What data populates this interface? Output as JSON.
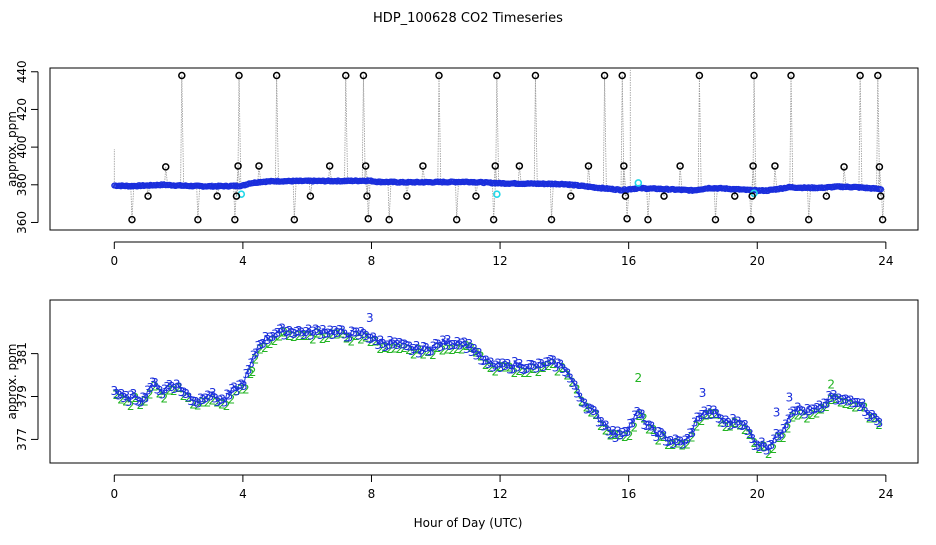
{
  "chart_data": {
    "title": "HDP_100628  CO2 Timeseries",
    "xlabel": "Hour of Day (UTC)",
    "charts": [
      {
        "type": "scatter",
        "name": "upper",
        "ylabel": "approx. ppm",
        "xlim": [
          -2,
          25
        ],
        "ylim": [
          356,
          442
        ],
        "xticks": [
          0,
          4,
          8,
          12,
          16,
          20,
          24
        ],
        "xtick_labels": [
          "0",
          "4",
          "8",
          "12",
          "16",
          "20",
          "24"
        ],
        "yticks": [
          360,
          380,
          400,
          420,
          440
        ],
        "ytick_labels": [
          "360",
          "380",
          "400",
          "420",
          "440"
        ],
        "baseline_profile": [
          [
            0,
            379.6
          ],
          [
            0.5,
            379.3
          ],
          [
            1,
            379.6
          ],
          [
            1.5,
            380
          ],
          [
            2,
            379.6
          ],
          [
            2.5,
            379.3
          ],
          [
            3,
            379.2
          ],
          [
            3.5,
            379.3
          ],
          [
            4,
            379.5
          ],
          [
            4.2,
            380.8
          ],
          [
            4.6,
            381.6
          ],
          [
            5,
            381.9
          ],
          [
            6,
            382.0
          ],
          [
            7,
            382.0
          ],
          [
            7.9,
            382.2
          ],
          [
            8.2,
            381.6
          ],
          [
            9,
            381.3
          ],
          [
            10,
            381.4
          ],
          [
            11,
            381.6
          ],
          [
            12,
            380.8
          ],
          [
            13,
            380.6
          ],
          [
            14,
            380.4
          ],
          [
            15,
            378.5
          ],
          [
            15.8,
            377.2
          ],
          [
            16.3,
            378.2
          ],
          [
            17,
            377.8
          ],
          [
            18,
            377.0
          ],
          [
            18.5,
            378.3
          ],
          [
            19,
            378.0
          ],
          [
            19.9,
            377.0
          ],
          [
            20.3,
            376.9
          ],
          [
            21,
            378.7
          ],
          [
            21.5,
            378.4
          ],
          [
            22,
            378.4
          ],
          [
            22.5,
            379.0
          ],
          [
            23,
            378.8
          ],
          [
            23.8,
            377.8
          ]
        ],
        "blue_series_count": 700,
        "cyan_points": [
          [
            3.95,
            375
          ],
          [
            11.9,
            375
          ],
          [
            19.9,
            375.5
          ],
          [
            16.3,
            381
          ]
        ],
        "outliers": [
          [
            0.55,
            361.5
          ],
          [
            1.05,
            374
          ],
          [
            1.6,
            389.5
          ],
          [
            2.1,
            438
          ],
          [
            2.6,
            361.5
          ],
          [
            3.2,
            374
          ],
          [
            3.75,
            361.5
          ],
          [
            3.8,
            374
          ],
          [
            3.85,
            390
          ],
          [
            3.88,
            438
          ],
          [
            4.5,
            390
          ],
          [
            5.05,
            438
          ],
          [
            5.6,
            361.5
          ],
          [
            6.1,
            374
          ],
          [
            6.7,
            390
          ],
          [
            7.2,
            438
          ],
          [
            7.75,
            438
          ],
          [
            7.82,
            390
          ],
          [
            7.86,
            374
          ],
          [
            7.9,
            362
          ],
          [
            8.55,
            361.5
          ],
          [
            9.1,
            374
          ],
          [
            9.6,
            390
          ],
          [
            10.1,
            438
          ],
          [
            10.65,
            361.5
          ],
          [
            11.25,
            374
          ],
          [
            11.8,
            361.5
          ],
          [
            11.85,
            390
          ],
          [
            11.9,
            438
          ],
          [
            12.6,
            390
          ],
          [
            13.1,
            438
          ],
          [
            13.6,
            361.5
          ],
          [
            14.2,
            374
          ],
          [
            14.75,
            390
          ],
          [
            15.25,
            438
          ],
          [
            15.8,
            438
          ],
          [
            15.85,
            390
          ],
          [
            15.9,
            374
          ],
          [
            15.95,
            362
          ],
          [
            16.6,
            361.5
          ],
          [
            17.1,
            374
          ],
          [
            17.6,
            390
          ],
          [
            18.2,
            438
          ],
          [
            18.7,
            361.5
          ],
          [
            19.3,
            374
          ],
          [
            19.8,
            361.5
          ],
          [
            19.84,
            374
          ],
          [
            19.87,
            390
          ],
          [
            19.9,
            438
          ],
          [
            20.55,
            390
          ],
          [
            21.05,
            438
          ],
          [
            21.6,
            361.5
          ],
          [
            22.15,
            374
          ],
          [
            22.7,
            389.5
          ],
          [
            23.2,
            438
          ],
          [
            23.75,
            438
          ],
          [
            23.8,
            389.5
          ],
          [
            23.84,
            374
          ],
          [
            23.9,
            361.5
          ]
        ],
        "colors": {
          "series": "#1a2edc",
          "cyan": "#22d8e8",
          "outlier": "#000000",
          "spike": "#9a9a9a"
        }
      },
      {
        "type": "scatter",
        "name": "lower",
        "ylabel": "approx. ppm",
        "xlim": [
          -2,
          25
        ],
        "ylim": [
          375.9,
          383.5
        ],
        "xticks": [
          0,
          4,
          8,
          12,
          16,
          20,
          24
        ],
        "xtick_labels": [
          "0",
          "4",
          "8",
          "12",
          "16",
          "20",
          "24"
        ],
        "yticks": [
          377,
          379,
          381
        ],
        "ytick_labels": [
          "377",
          "379",
          "381"
        ],
        "profile": [
          [
            0,
            379.3
          ],
          [
            0.3,
            378.9
          ],
          [
            0.6,
            379.0
          ],
          [
            0.9,
            378.9
          ],
          [
            1.1,
            379.5
          ],
          [
            1.3,
            379.6
          ],
          [
            1.5,
            379.2
          ],
          [
            1.7,
            379.6
          ],
          [
            2.0,
            379.5
          ],
          [
            2.3,
            379.0
          ],
          [
            2.6,
            378.8
          ],
          [
            2.9,
            379.2
          ],
          [
            3.2,
            378.9
          ],
          [
            3.4,
            378.8
          ],
          [
            3.7,
            379.3
          ],
          [
            4.0,
            379.6
          ],
          [
            4.2,
            380.3
          ],
          [
            4.5,
            381.5
          ],
          [
            5.0,
            382.0
          ],
          [
            5.5,
            382.1
          ],
          [
            6.0,
            382.0
          ],
          [
            6.5,
            382.1
          ],
          [
            7.0,
            382.0
          ],
          [
            7.5,
            381.9
          ],
          [
            7.8,
            382.0
          ],
          [
            8.1,
            381.6
          ],
          [
            8.6,
            381.5
          ],
          [
            9.1,
            381.3
          ],
          [
            9.6,
            381.2
          ],
          [
            10.2,
            381.5
          ],
          [
            10.8,
            381.6
          ],
          [
            11.2,
            381.2
          ],
          [
            11.5,
            380.6
          ],
          [
            12.0,
            380.4
          ],
          [
            12.5,
            380.5
          ],
          [
            13.1,
            380.4
          ],
          [
            13.6,
            380.6
          ],
          [
            14.0,
            380.4
          ],
          [
            14.4,
            379.2
          ],
          [
            14.8,
            378.4
          ],
          [
            15.2,
            377.8
          ],
          [
            15.6,
            377.2
          ],
          [
            16.0,
            377.6
          ],
          [
            16.3,
            378.3
          ],
          [
            16.6,
            377.6
          ],
          [
            17.0,
            377.2
          ],
          [
            17.4,
            376.9
          ],
          [
            17.8,
            376.9
          ],
          [
            18.2,
            378.2
          ],
          [
            18.6,
            378.3
          ],
          [
            19.0,
            377.8
          ],
          [
            19.5,
            377.9
          ],
          [
            19.9,
            376.9
          ],
          [
            20.3,
            376.7
          ],
          [
            20.7,
            377.3
          ],
          [
            21.1,
            378.5
          ],
          [
            21.5,
            378.3
          ],
          [
            21.9,
            378.4
          ],
          [
            22.3,
            379.0
          ],
          [
            22.7,
            378.8
          ],
          [
            23.1,
            378.9
          ],
          [
            23.5,
            378.2
          ],
          [
            23.8,
            377.8
          ]
        ],
        "marker_count": 320,
        "blue_marker": "3",
        "green_marker": "2",
        "green_spikes": [
          [
            16.3,
            379.9
          ],
          [
            4.3,
            380.2
          ],
          [
            22.3,
            379.6
          ]
        ],
        "blue_spikes": [
          [
            7.95,
            382.7
          ],
          [
            18.3,
            379.2
          ],
          [
            20.6,
            378.3
          ],
          [
            21.0,
            379.0
          ]
        ],
        "colors": {
          "blue": "#1a2edc",
          "green": "#22b422",
          "line": "#1a2edc"
        }
      }
    ]
  }
}
